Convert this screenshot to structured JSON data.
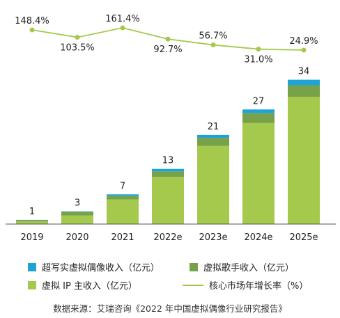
{
  "chart_data": {
    "type": "bar",
    "categories": [
      "2019",
      "2020",
      "2021",
      "2022e",
      "2023e",
      "2024e",
      "2025e"
    ],
    "totals": [
      "1",
      "3",
      "7",
      "13",
      "21",
      "27",
      "34"
    ],
    "series": [
      {
        "name": "超写实虚拟偶像收入（亿元）",
        "color": "#1fa3d4",
        "values": [
          0.05,
          0.1,
          0.4,
          0.6,
          0.7,
          0.9,
          1.3
        ]
      },
      {
        "name": "虚拟歌手收入（亿元）",
        "color": "#77a24a",
        "values": [
          0.35,
          0.9,
          0.8,
          1.3,
          1.9,
          2.3,
          2.7
        ]
      },
      {
        "name": "虚拟 IP 主收入（亿元）",
        "color": "#a5c94c",
        "values": [
          0.6,
          2.0,
          5.8,
          11.1,
          18.4,
          23.8,
          30.0
        ]
      }
    ],
    "line_series": {
      "name": "核心市场年增长率（%）",
      "color": "#a5c94c",
      "values": [
        148.4,
        103.5,
        161.4,
        92.7,
        56.7,
        31.0,
        24.9
      ],
      "labels": [
        "148.4%",
        "103.5%",
        "161.4%",
        "92.7%",
        "56.7%",
        "31.0%",
        "24.9%"
      ]
    },
    "ylim": [
      0,
      35
    ],
    "line_ylim": [
      0,
      170
    ],
    "grid": false,
    "legend_position": "bottom"
  },
  "source": "数据来源：艾瑞咨询《2022 年中国虚拟偶像行业研究报告》"
}
